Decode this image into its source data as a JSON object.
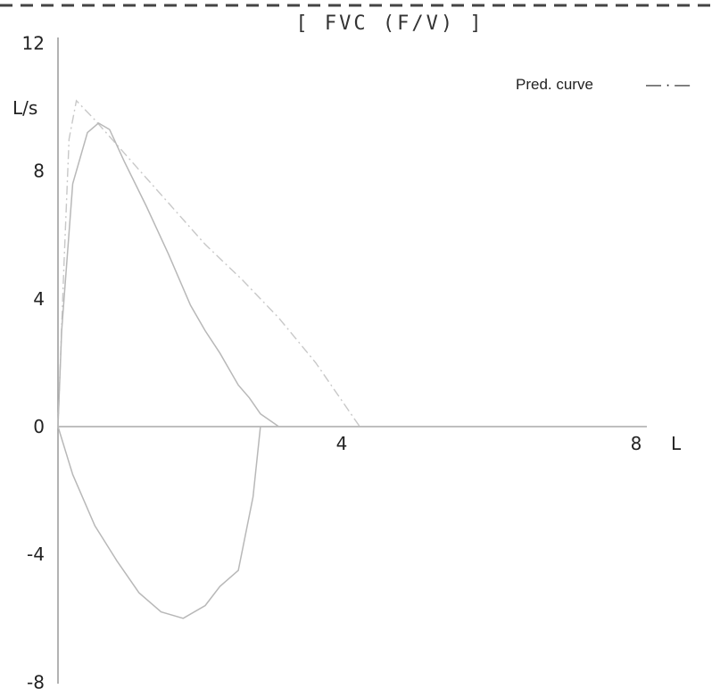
{
  "chart_data": {
    "type": "line",
    "title": "[ FVC (F/V) ]",
    "xlabel": "L",
    "ylabel": "L/s",
    "xlim": [
      0,
      8
    ],
    "ylim": [
      -8,
      12
    ],
    "x_ticks": [
      "4",
      "8"
    ],
    "y_ticks": [
      "12",
      "8",
      "4",
      "0",
      "-4",
      "-8"
    ],
    "grid": false,
    "legend": {
      "label": "Pred. curve",
      "symbol": "— · —",
      "placement": "top-right"
    },
    "series": [
      {
        "name": "Pred. curve",
        "style": "dash-dot",
        "x": [
          0.0,
          0.08,
          0.15,
          0.25,
          0.5,
          1.0,
          1.5,
          2.0,
          2.5,
          3.0,
          3.5,
          4.1
        ],
        "y": [
          0.0,
          5.0,
          9.0,
          10.2,
          9.6,
          8.3,
          7.0,
          5.7,
          4.6,
          3.4,
          2.0,
          0.0
        ]
      },
      {
        "style": "solid",
        "x": [
          0.0,
          0.05,
          0.2,
          0.4,
          0.55,
          0.7,
          0.9,
          1.2,
          1.5,
          1.8,
          2.0,
          2.2,
          2.45,
          2.6,
          2.75,
          3.0
        ],
        "y": [
          0.0,
          3.0,
          7.6,
          9.2,
          9.5,
          9.3,
          8.3,
          6.9,
          5.4,
          3.8,
          3.0,
          2.3,
          1.3,
          0.9,
          0.4,
          0.0
        ]
      },
      {
        "style": "solid",
        "x": [
          0.0,
          0.2,
          0.5,
          0.8,
          1.1,
          1.4,
          1.7,
          2.0,
          2.2,
          2.45,
          2.65,
          2.75
        ],
        "y": [
          0.0,
          -1.5,
          -3.1,
          -4.2,
          -5.2,
          -5.8,
          -6.0,
          -5.6,
          -5.0,
          -4.5,
          -2.2,
          0.0
        ]
      }
    ]
  }
}
